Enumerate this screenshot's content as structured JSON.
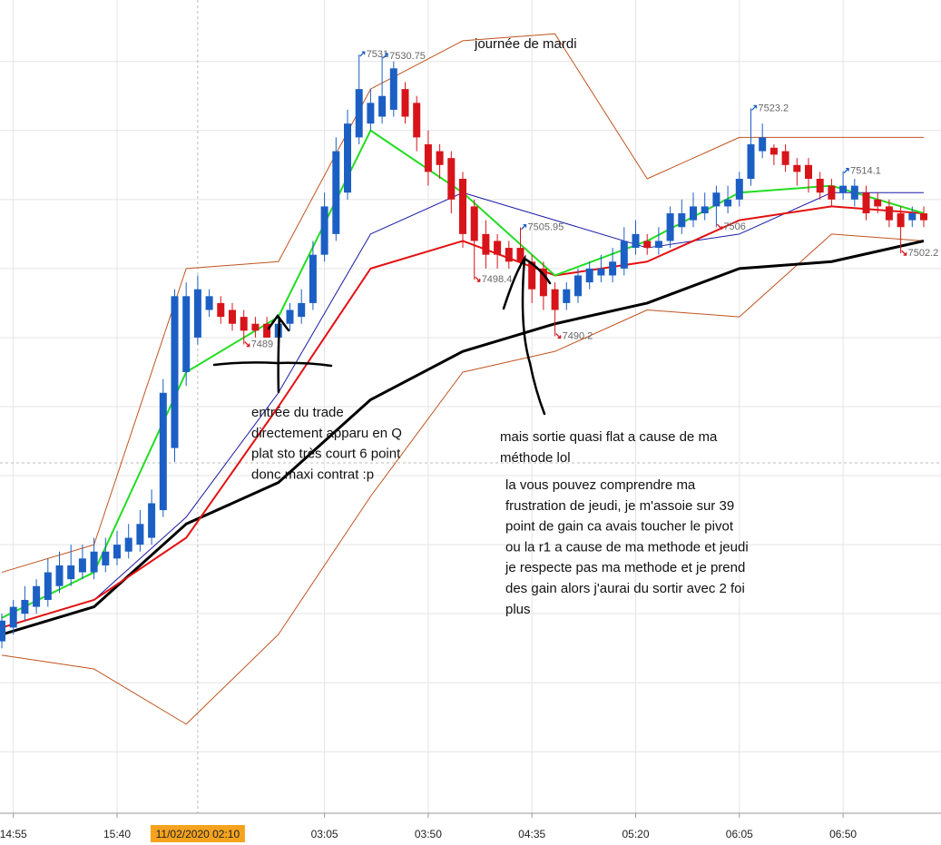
{
  "chart_data": {
    "type": "candlestick",
    "ylim": [
      7421.1,
      7538.9
    ],
    "grid_levels": [
      7430,
      7440,
      7450,
      7460,
      7470,
      7480,
      7490,
      7500,
      7510,
      7520,
      7530
    ],
    "xticks": [
      {
        "value": 1,
        "label": "14:55"
      },
      {
        "value": 10,
        "label": "15:40"
      },
      {
        "value": 28,
        "label": "03:05"
      },
      {
        "value": 37,
        "label": "03:50"
      },
      {
        "value": 46,
        "label": "04:35"
      },
      {
        "value": 55,
        "label": "05:20"
      },
      {
        "value": 64,
        "label": "06:05"
      },
      {
        "value": 73,
        "label": "06:50"
      }
    ],
    "crosshair": {
      "value": 17,
      "label": "11/02/2020 02:10"
    },
    "up_color": "#1c5fc4",
    "down_color": "#d7141a",
    "open": [
      7446,
      7448,
      7450,
      7451,
      7452,
      7454,
      7455,
      7456,
      7456,
      7457,
      7458,
      7459,
      7460,
      7461,
      7465,
      7474,
      7485,
      7490,
      7494,
      7495,
      7494,
      7493,
      7492,
      7492,
      7490,
      7492,
      7493,
      7495,
      7502,
      7505,
      7511,
      7519,
      7521,
      7522,
      7523,
      7526,
      7524,
      7518,
      7517,
      7516,
      7513,
      7509,
      7505,
      7504,
      7503,
      7503,
      7501,
      7500,
      7497,
      7495,
      7496,
      7498,
      7499,
      7499,
      7500,
      7503,
      7504,
      7503,
      7504,
      7506,
      7507,
      7508,
      7509,
      7509,
      7510,
      7513,
      7517,
      7517.5,
      7517,
      7515,
      7515,
      7513,
      7512,
      7511,
      7510,
      7511,
      7510,
      7509,
      7508,
      7507,
      7508
    ],
    "high": [
      7450,
      7452,
      7454,
      7455,
      7458,
      7459,
      7460,
      7460,
      7461,
      7461,
      7462,
      7463,
      7465,
      7468,
      7484,
      7497,
      7498,
      7499,
      7497,
      7496,
      7495,
      7494,
      7493,
      7493,
      7493,
      7495,
      7497,
      7504,
      7511,
      7519,
      7523,
      7531,
      7526,
      7530.75,
      7530,
      7527,
      7525,
      7520,
      7518,
      7517,
      7514,
      7510,
      7507,
      7505,
      7504,
      7505.95,
      7502,
      7501,
      7498,
      7498,
      7500,
      7501,
      7502,
      7503,
      7506,
      7507,
      7505,
      7506,
      7509,
      7510,
      7511,
      7511,
      7512,
      7512,
      7514,
      7523.2,
      7521,
      7518,
      7518,
      7516,
      7516,
      7514,
      7513,
      7514.1,
      7513,
      7512,
      7511,
      7510,
      7509,
      7509,
      7509
    ],
    "low": [
      7445,
      7447,
      7449,
      7450,
      7451,
      7453,
      7454,
      7455,
      7455,
      7456,
      7457,
      7458,
      7459,
      7460,
      7464,
      7472,
      7483,
      7489,
      7493,
      7492,
      7491,
      7489,
      7490,
      7490,
      7490,
      7491,
      7492,
      7494,
      7501,
      7504,
      7510,
      7518,
      7520,
      7521,
      7522,
      7521,
      7517,
      7512,
      7513,
      7508,
      7503,
      7498.4,
      7500,
      7500,
      7500,
      7500,
      7495,
      7494,
      7490.2,
      7494,
      7495,
      7497,
      7498,
      7498,
      7499,
      7502,
      7502,
      7502,
      7503,
      7505,
      7506,
      7507,
      7506,
      7508,
      7509,
      7512,
      7516,
      7515,
      7514,
      7512,
      7511,
      7510,
      7509,
      7510,
      7509,
      7507,
      7508,
      7506,
      7502.2,
      7506,
      7506
    ],
    "close": [
      7449,
      7451,
      7452,
      7454,
      7456,
      7457,
      7457,
      7458,
      7459,
      7459,
      7460,
      7461,
      7463,
      7466,
      7482,
      7496,
      7496,
      7497,
      7496,
      7493,
      7492,
      7491,
      7491,
      7490,
      7492,
      7494,
      7495,
      7502,
      7509,
      7517,
      7521,
      7526,
      7524,
      7525,
      7529,
      7522,
      7519,
      7514,
      7515,
      7510,
      7505,
      7504,
      7502,
      7502,
      7501,
      7501,
      7497,
      7496,
      7494,
      7497,
      7499,
      7500,
      7500,
      7501,
      7504,
      7505,
      7503,
      7504,
      7508,
      7508,
      7509,
      7509,
      7511,
      7510,
      7513,
      7518,
      7519,
      7516.5,
      7515,
      7514,
      7513,
      7511,
      7510,
      7512,
      7512,
      7508,
      7509,
      7507,
      7506,
      7508,
      7507
    ],
    "indicators": [
      {
        "color": "#c0541e",
        "width": 1,
        "x": [
          0,
          8,
          16,
          24,
          32,
          40,
          48,
          56,
          64,
          72,
          80
        ],
        "values": [
          7456,
          7460,
          7500,
          7501,
          7526,
          7533,
          7534,
          7513,
          7519,
          7519,
          7519
        ]
      },
      {
        "color": "#c0541e",
        "width": 1,
        "x": [
          0,
          8,
          16,
          24,
          32,
          40,
          48,
          56,
          64,
          72,
          80
        ],
        "values": [
          7444,
          7442,
          7434,
          7447,
          7467,
          7485,
          7488,
          7494,
          7493,
          7505,
          7504
        ]
      },
      {
        "color": "#1a1aa8",
        "width": 1,
        "x": [
          0,
          8,
          16,
          24,
          32,
          40,
          48,
          56,
          64,
          72,
          80
        ],
        "values": [
          7448,
          7452,
          7464,
          7482,
          7505,
          7511,
          7507,
          7503,
          7505,
          7511,
          7511
        ]
      },
      {
        "color": "#000000",
        "width": 3,
        "x": [
          0,
          8,
          16,
          24,
          32,
          40,
          48,
          56,
          64,
          72,
          80
        ],
        "values": [
          7447,
          7451,
          7463,
          7469,
          7481,
          7488,
          7492,
          7495,
          7500,
          7501,
          7504
        ]
      },
      {
        "color": "#e31010",
        "width": 2,
        "x": [
          0,
          8,
          16,
          24,
          32,
          40,
          48,
          56,
          64,
          72,
          80
        ],
        "values": [
          7448,
          7452,
          7461,
          7480,
          7500,
          7504,
          7499,
          7501,
          7507,
          7509,
          7508
        ]
      },
      {
        "color": "#22dd22",
        "width": 2,
        "x": [
          0,
          8,
          16,
          24,
          32,
          40,
          48,
          56,
          64,
          72,
          80
        ],
        "values": [
          7449.4,
          7456,
          7485,
          7493,
          7520,
          7511,
          7499,
          7504,
          7511,
          7512,
          7508
        ]
      }
    ],
    "price_labels": [
      {
        "index": 31,
        "value": 7531,
        "dir": "up"
      },
      {
        "index": 33,
        "value": 7530.75,
        "dir": "up"
      },
      {
        "index": 45,
        "value": 7505.95,
        "dir": "up"
      },
      {
        "index": 41,
        "value": 7498.4,
        "dir": "down"
      },
      {
        "index": 48,
        "value": 7490.2,
        "dir": "down"
      },
      {
        "index": 21,
        "value": 7489,
        "dir": "down"
      },
      {
        "index": 65,
        "value": 7523.2,
        "dir": "up"
      },
      {
        "index": 73,
        "value": 7514.1,
        "dir": "up"
      },
      {
        "index": 62,
        "value": 7506,
        "dir": "down"
      },
      {
        "index": 78,
        "value": 7502.2,
        "dir": "down"
      }
    ],
    "annotations": {
      "title_note": "journée de mardi",
      "entry": [
        "entrée du trade",
        "directement apparu en Q",
        "plat sto très court 6 point",
        "donc maxi contrat :p"
      ],
      "exit": [
        "mais sortie quasi flat a cause de ma",
        "méthode lol"
      ],
      "comment": [
        "la vous pouvez comprendre ma",
        "frustration de jeudi, je m'assoie sur 39",
        "point de gain ca avais toucher le pivot",
        "ou la r1 a cause de ma methode et jeudi",
        "je respecte pas ma methode et je prend",
        "des gain alors j'aurai du sortir avec 2 foi",
        "plus"
      ]
    }
  }
}
